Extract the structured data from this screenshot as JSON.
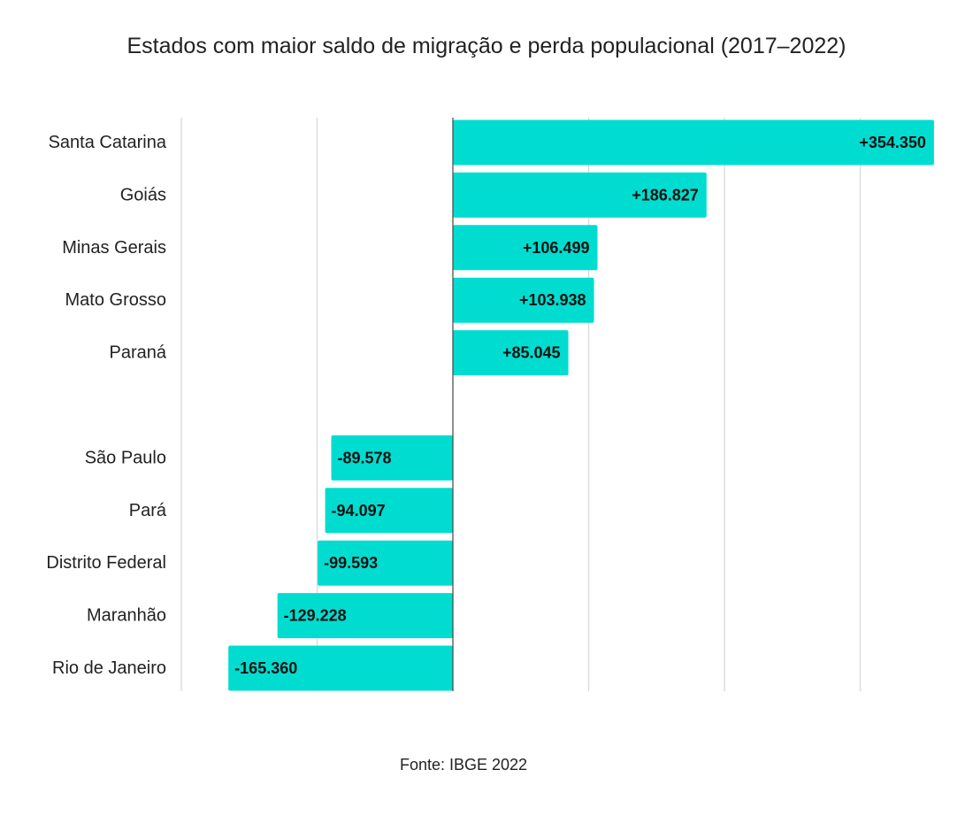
{
  "chart_data": {
    "type": "bar",
    "orientation": "horizontal",
    "title": "Estados com maior saldo de migração e perda populacional (2017–2022)",
    "source": "Fonte: IBGE 2022",
    "categories": [
      "Santa Catarina",
      "Goiás",
      "Minas Gerais",
      "Mato Grosso",
      "Paraná",
      "São Paulo",
      "Pará",
      "Distrito Federal",
      "Maranhão",
      "Rio de Janeiro"
    ],
    "values": [
      354350,
      186827,
      106499,
      103938,
      85045,
      -89578,
      -94097,
      -99593,
      -129228,
      -165360
    ],
    "data_labels": [
      "+354.350",
      "+186.827",
      "+106.499",
      "+103.938",
      "+85.045",
      "-89.578",
      "-94.097",
      "-99.593",
      "-129.228",
      "-165.360"
    ],
    "group_gap_after_index": 4,
    "xlim": [
      -200000,
      300000
    ],
    "gridlines": [
      -200000,
      -100000,
      100000,
      200000,
      300000
    ],
    "grid": true,
    "bar_color": "#00DDD0",
    "xlabel": "",
    "ylabel": ""
  }
}
